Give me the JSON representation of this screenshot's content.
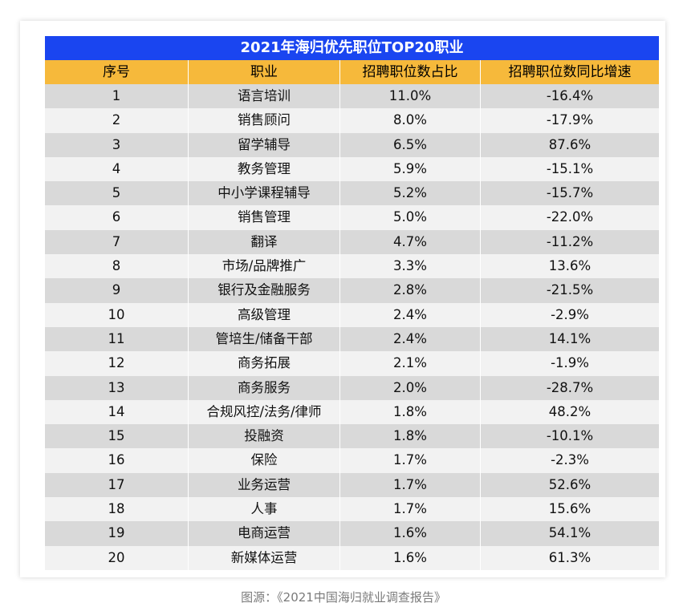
{
  "table": {
    "title": "2021年海归优先职位TOP20职业",
    "headers": [
      "序号",
      "职业",
      "招聘职位数占比",
      "招聘职位数同比增速"
    ],
    "rows": [
      [
        "1",
        "语言培训",
        "11.0%",
        "-16.4%"
      ],
      [
        "2",
        "销售顾问",
        "8.0%",
        "-17.9%"
      ],
      [
        "3",
        "留学辅导",
        "6.5%",
        "87.6%"
      ],
      [
        "4",
        "教务管理",
        "5.9%",
        "-15.1%"
      ],
      [
        "5",
        "中小学课程辅导",
        "5.2%",
        "-15.7%"
      ],
      [
        "6",
        "销售管理",
        "5.0%",
        "-22.0%"
      ],
      [
        "7",
        "翻译",
        "4.7%",
        "-11.2%"
      ],
      [
        "8",
        "市场/品牌推广",
        "3.3%",
        "13.6%"
      ],
      [
        "9",
        "银行及金融服务",
        "2.8%",
        "-21.5%"
      ],
      [
        "10",
        "高级管理",
        "2.4%",
        "-2.9%"
      ],
      [
        "11",
        "管培生/储备干部",
        "2.4%",
        "14.1%"
      ],
      [
        "12",
        "商务拓展",
        "2.1%",
        "-1.9%"
      ],
      [
        "13",
        "商务服务",
        "2.0%",
        "-28.7%"
      ],
      [
        "14",
        "合规风控/法务/律师",
        "1.8%",
        "48.2%"
      ],
      [
        "15",
        "投融资",
        "1.8%",
        "-10.1%"
      ],
      [
        "16",
        "保险",
        "1.7%",
        "-2.3%"
      ],
      [
        "17",
        "业务运营",
        "1.7%",
        "52.6%"
      ],
      [
        "18",
        "人事",
        "1.7%",
        "15.6%"
      ],
      [
        "19",
        "电商运营",
        "1.6%",
        "54.1%"
      ],
      [
        "20",
        "新媒体运营",
        "1.6%",
        "61.3%"
      ]
    ]
  },
  "source_caption": "图源：《2021中国海归就业调查报告》",
  "colors": {
    "title_bg": "#1a45f0",
    "header_bg": "#f6b93b",
    "row_odd_bg": "#d9d9d9",
    "row_even_bg": "#f2f2f2"
  }
}
